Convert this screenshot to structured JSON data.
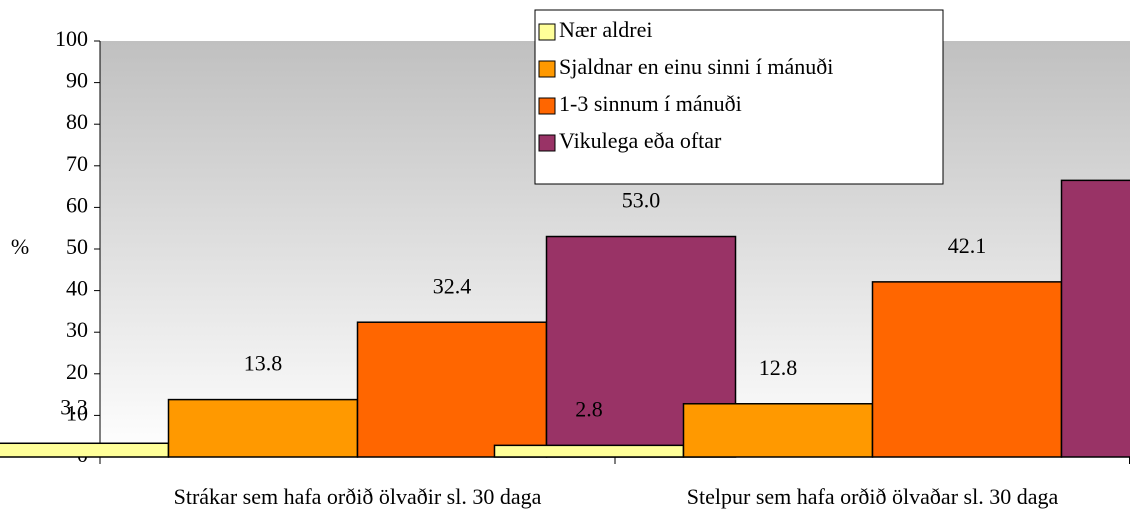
{
  "chart_data": {
    "type": "bar",
    "categories": [
      "Strákar sem hafa orðið ölvaðir sl. 30 daga",
      "Stelpur sem hafa orðið ölvaðar sl. 30 daga"
    ],
    "y_label": "%",
    "series": [
      {
        "name": "Nær aldrei",
        "color": "#ffff99",
        "values": [
          3.3,
          2.8
        ],
        "value_labels": [
          "3.3",
          "2.8"
        ]
      },
      {
        "name": "Sjaldnar en einu sinni í mánuði",
        "color": "#ff9900",
        "values": [
          13.8,
          12.8
        ],
        "value_labels": [
          "13.8",
          "12.8"
        ]
      },
      {
        "name": "1-3 sinnum í mánuði",
        "color": "#ff6600",
        "values": [
          32.4,
          42.1
        ],
        "value_labels": [
          "32.4",
          "42.1"
        ]
      },
      {
        "name": "Vikulega eða oftar",
        "color": "#993366",
        "values": [
          53.0,
          66.5
        ],
        "value_labels": [
          "53.0",
          "66.5"
        ]
      }
    ],
    "ylim": [
      0,
      100
    ],
    "yticks": [
      0,
      10,
      20,
      30,
      40,
      50,
      60,
      70,
      80,
      90,
      100
    ]
  }
}
